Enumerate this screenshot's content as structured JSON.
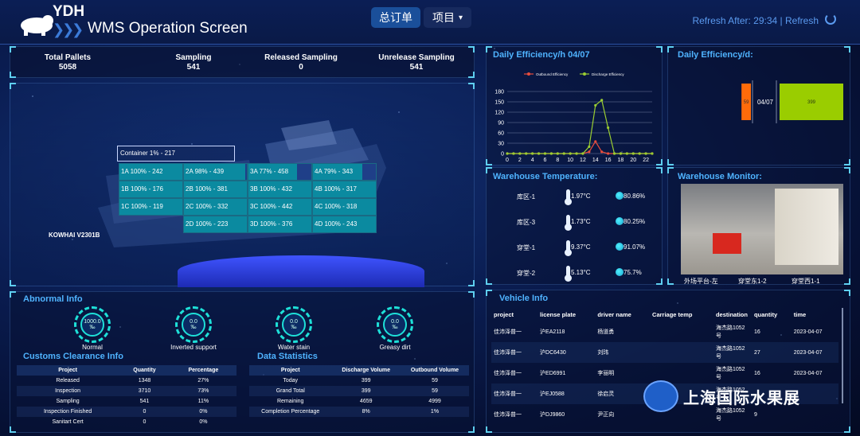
{
  "header": {
    "brand": "YDH",
    "title": "WMS Operation Screen",
    "btn_orders": "总订单",
    "btn_project": "项目",
    "refresh_text": "Refresh After:  29:34  |  Refresh"
  },
  "stats": [
    {
      "label": "Total Pallets",
      "value": "5058"
    },
    {
      "label": "Sampling",
      "value": "541"
    },
    {
      "label": "Released Sampling",
      "value": "0"
    },
    {
      "label": "Unrelease Sampling",
      "value": "541"
    }
  ],
  "ship": {
    "vessel": "KOWHAI V2301B",
    "container_title": "Container 1% - 217",
    "cells": [
      {
        "text": "1A  100% - 242",
        "pct": 100
      },
      {
        "text": "2A  98% - 439",
        "pct": 98
      },
      {
        "text": "3A  77% - 458",
        "pct": 77
      },
      {
        "text": "4A  79% - 343",
        "pct": 79
      },
      {
        "text": "1B  100% - 176",
        "pct": 100
      },
      {
        "text": "2B  100% - 381",
        "pct": 100
      },
      {
        "text": "3B  100% - 432",
        "pct": 100
      },
      {
        "text": "4B  100% - 317",
        "pct": 100
      },
      {
        "text": "1C  100% - 119",
        "pct": 100
      },
      {
        "text": "2C  100% - 332",
        "pct": 100
      },
      {
        "text": "3C  100% - 442",
        "pct": 100
      },
      {
        "text": "4C  100% - 318",
        "pct": 100
      },
      {
        "text": "2D  100% - 223",
        "pct": 100
      },
      {
        "text": "3D  100% - 376",
        "pct": 100
      },
      {
        "text": "4D  100% - 243",
        "pct": 100
      }
    ]
  },
  "abnormal": {
    "title": "Abnormal Info",
    "gauges": [
      {
        "value": "1000.0",
        "unit": "‰",
        "label": "Normal"
      },
      {
        "value": "0.0",
        "unit": "‰",
        "label": "Inverted support"
      },
      {
        "value": "0.0",
        "unit": "‰",
        "label": "Water stain"
      },
      {
        "value": "0.0",
        "unit": "‰",
        "label": "Greasy dirt"
      }
    ]
  },
  "customs": {
    "title": "Customs Clearance Info",
    "headers": [
      "Project",
      "Quantity",
      "Percentage"
    ],
    "rows": [
      [
        "Released",
        "1348",
        "27%"
      ],
      [
        "Inspection",
        "3710",
        "73%"
      ],
      [
        "Sampling",
        "541",
        "11%"
      ],
      [
        "Inspection Finished",
        "0",
        "0%"
      ],
      [
        "Sanitart Cert",
        "0",
        "0%"
      ]
    ]
  },
  "datastats": {
    "title": "Data Statistics",
    "headers": [
      "Project",
      "Discharge Volume",
      "Outbound Volume"
    ],
    "rows": [
      [
        "Today",
        "399",
        "59"
      ],
      [
        "Grand Total",
        "399",
        "59"
      ],
      [
        "Remaining",
        "4659",
        "4999"
      ],
      [
        "Completion Percentage",
        "8%",
        "1%"
      ]
    ]
  },
  "efficiency_hourly": {
    "title": "Daily Efficiency/h 04/07"
  },
  "efficiency_daily": {
    "title": "Daily Efficiency/d:"
  },
  "chart_data": [
    {
      "type": "line",
      "title": "Daily Efficiency/h 04/07",
      "x": [
        0,
        1,
        2,
        3,
        4,
        5,
        6,
        7,
        8,
        9,
        10,
        11,
        12,
        13,
        14,
        15,
        16,
        17,
        18,
        19,
        20,
        21,
        22,
        23
      ],
      "xticks": [
        "0",
        "2",
        "4",
        "6",
        "8",
        "10",
        "12",
        "14",
        "16",
        "18",
        "20",
        "22"
      ],
      "yticks": [
        "0",
        "30",
        "60",
        "90",
        "120",
        "150",
        "180"
      ],
      "ylim": [
        0,
        180
      ],
      "series": [
        {
          "name": "Outbound Efficiency",
          "color": "#e74c3c",
          "values": [
            0,
            0,
            0,
            0,
            0,
            0,
            0,
            0,
            0,
            0,
            0,
            0,
            0,
            5,
            35,
            5,
            0,
            0,
            0,
            0,
            0,
            0,
            0,
            0
          ]
        },
        {
          "name": "Discharge Efficiency",
          "color": "#9acd32",
          "values": [
            0,
            0,
            0,
            0,
            0,
            0,
            0,
            0,
            0,
            0,
            0,
            0,
            0,
            20,
            140,
            155,
            75,
            0,
            0,
            0,
            0,
            0,
            0,
            0
          ]
        }
      ],
      "legend": "top"
    },
    {
      "type": "bar",
      "title": "Daily Efficiency/d:",
      "categories": [
        "04/07"
      ],
      "series": [
        {
          "color": "#ff6b0a",
          "values": [
            59
          ]
        },
        {
          "color": "#9acd00",
          "values": [
            399
          ]
        }
      ],
      "data_labels": [
        "59",
        "399"
      ]
    }
  ],
  "temperature": {
    "title": "Warehouse Temperature:",
    "rows": [
      {
        "name": "库区-1",
        "temp": "1.97°C",
        "humidity": "80.86%"
      },
      {
        "name": "库区-3",
        "temp": "1.73°C",
        "humidity": "80.25%"
      },
      {
        "name": "穿堂-1",
        "temp": "9.37°C",
        "humidity": "91.07%"
      },
      {
        "name": "穿堂-2",
        "temp": "5.13°C",
        "humidity": "75.7%"
      }
    ]
  },
  "monitor": {
    "title": "Warehouse Monitor:",
    "cameras": [
      "外场平台-左",
      "穿堂东1-2",
      "穿堂西1-1"
    ]
  },
  "vehicle": {
    "title": "Vehicle Info",
    "headers": [
      "project",
      "license plate",
      "driver name",
      "Carriage temp",
      "destination",
      "quantity",
      "time"
    ],
    "rows": [
      [
        "佳沛泽普一",
        "沪EA2118",
        "杨道勇",
        "",
        "海杰路1052号",
        "16",
        "2023-04-07"
      ],
      [
        "佳沛泽普一",
        "沪DC6430",
        "刘玮",
        "",
        "海杰路1052号",
        "27",
        "2023-04-07"
      ],
      [
        "佳沛泽普一",
        "沪ED6991",
        "李丽明",
        "",
        "海杰路1052号",
        "16",
        "2023-04-07"
      ],
      [
        "佳沛泽普一",
        "沪EJ0588",
        "徐启灵",
        "",
        "海杰路1052号",
        "",
        ""
      ],
      [
        "佳沛泽普一",
        "沪DJ9860",
        "尹正向",
        "",
        "海杰路1052号",
        "9",
        ""
      ]
    ]
  },
  "watermark": "上海国际水果展"
}
